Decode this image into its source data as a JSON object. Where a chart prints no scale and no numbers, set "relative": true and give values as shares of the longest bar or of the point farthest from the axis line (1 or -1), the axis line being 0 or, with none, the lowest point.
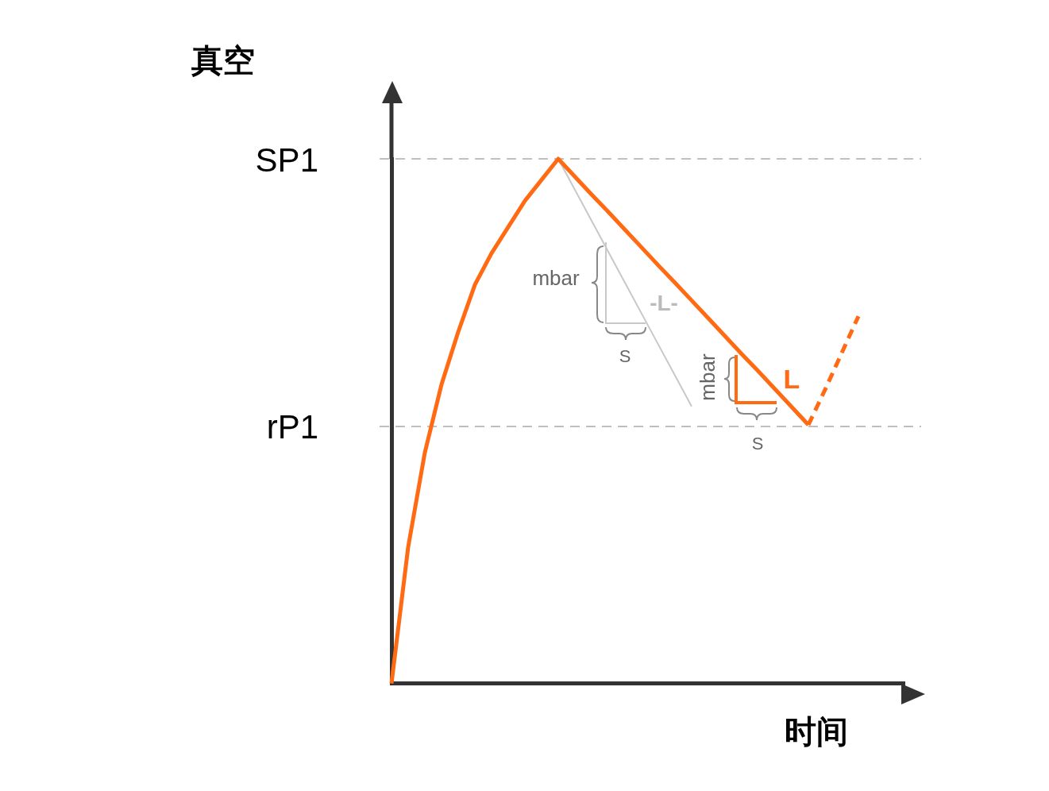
{
  "chart_data": {
    "type": "line",
    "relative": true,
    "ylabel": "真空",
    "xlabel": "时间",
    "categories": [
      null,
      null,
      null,
      null,
      null,
      null,
      null,
      null,
      null,
      null,
      null,
      null,
      null,
      null,
      null,
      null,
      null,
      null,
      null,
      null,
      null,
      null,
      null,
      null,
      null,
      null,
      null,
      null,
      null
    ],
    "series": [
      {
        "color": "#ff6a13",
        "line_style": "solid",
        "values": [
          0,
          0.26,
          0.44,
          0.57,
          0.67,
          0.76,
          0.82,
          0.87,
          0.92,
          0.96,
          1,
          0.966,
          0.932,
          0.899,
          0.865,
          0.831,
          0.797,
          0.764,
          0.73,
          0.696,
          0.662,
          0.628,
          0.595,
          0.561,
          0.527,
          0.493,
          null,
          null,
          null
        ]
      },
      {
        "color": "#ff6a13",
        "line_style": "dashed",
        "values": [
          null,
          null,
          null,
          null,
          null,
          null,
          null,
          null,
          null,
          null,
          null,
          null,
          null,
          null,
          null,
          null,
          null,
          null,
          null,
          null,
          null,
          null,
          null,
          null,
          null,
          0.493,
          0.56,
          0.63,
          0.7
        ]
      },
      {
        "color": "#c8c8c8",
        "line_style": "solid",
        "values": [
          null,
          null,
          null,
          null,
          null,
          null,
          null,
          null,
          null,
          null,
          1,
          0.941,
          0.882,
          0.823,
          0.764,
          0.705,
          0.646,
          0.587,
          0.528,
          null,
          null,
          null,
          null,
          null,
          null,
          null,
          null,
          null,
          null
        ]
      }
    ],
    "ref_lines": [
      {
        "axis": "y",
        "value": 1,
        "label": "SP1",
        "color": "#aaaaaa",
        "line_style": "dashed"
      },
      {
        "axis": "y",
        "value": 0.49,
        "label": "rP1",
        "color": "#aaaaaa",
        "line_style": "dashed"
      }
    ],
    "annotations": [
      "mbar",
      "S",
      "-L-",
      "mbar",
      "S",
      "L"
    ],
    "grid": false,
    "legend": false,
    "marker": "none"
  }
}
